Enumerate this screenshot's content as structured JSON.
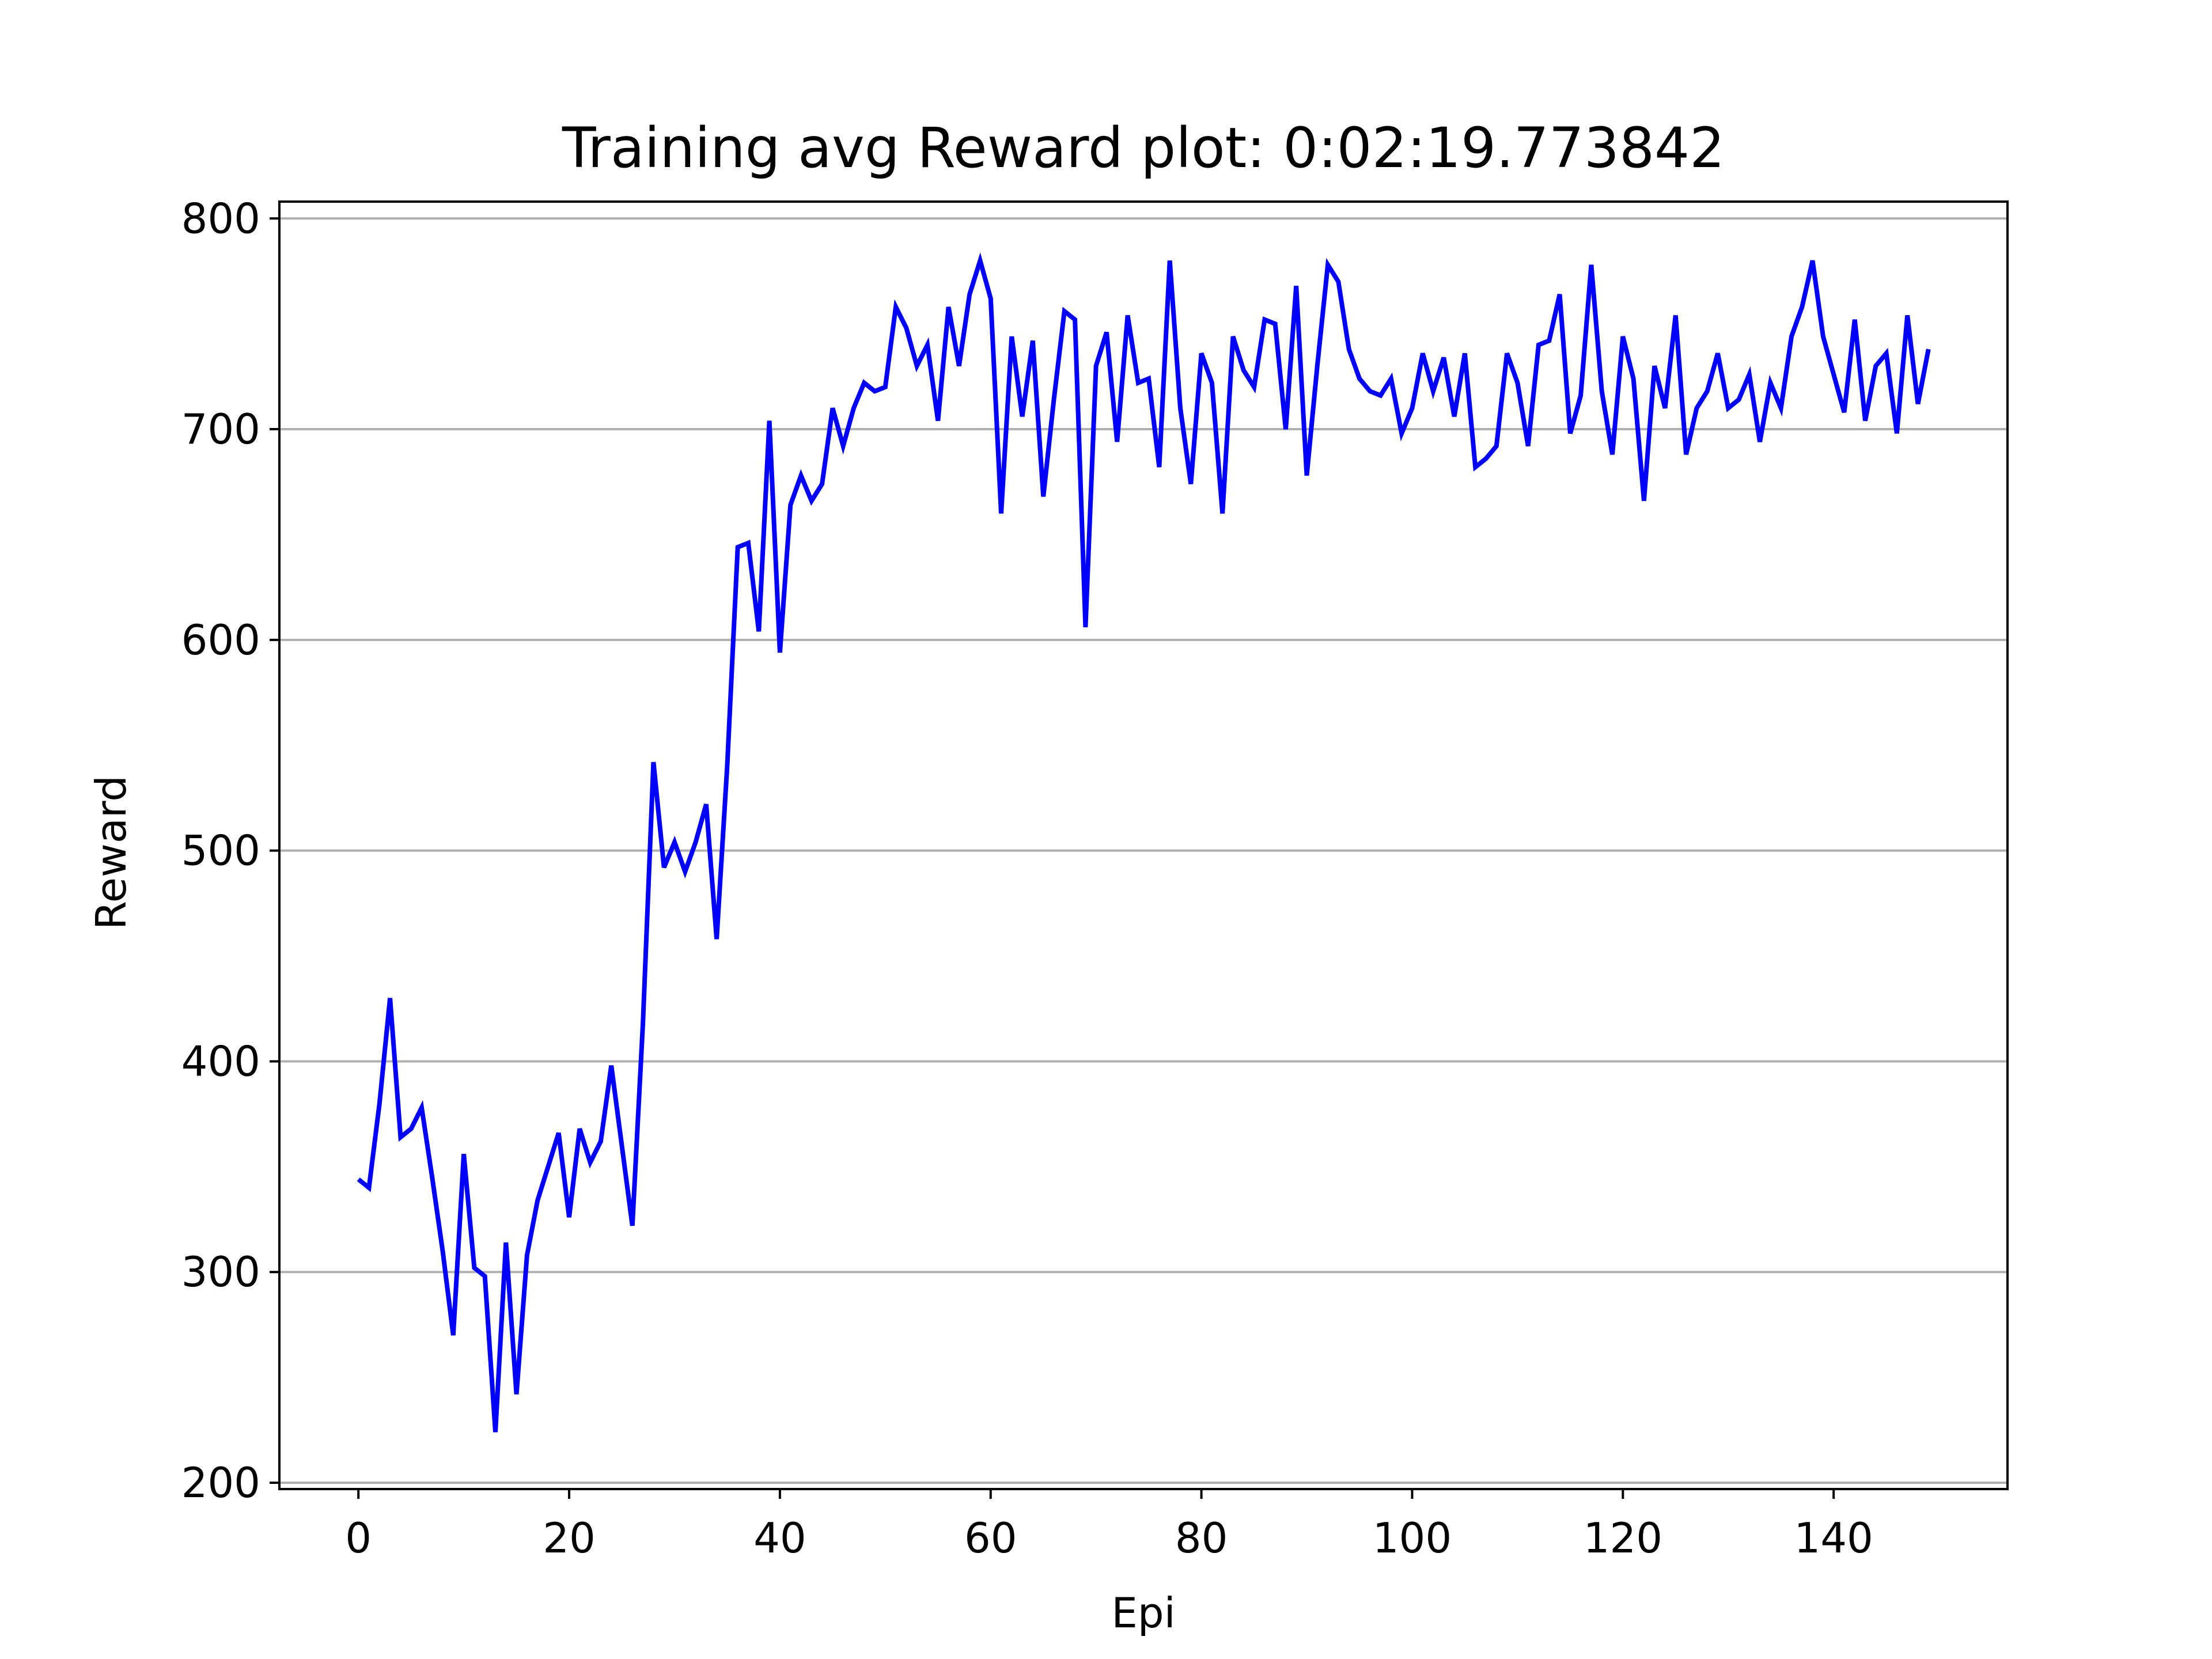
{
  "chart_data": {
    "type": "line",
    "title": "Training avg Reward plot: 0:02:19.773842",
    "xlabel": "Epi",
    "ylabel": "Reward",
    "xlim": [
      -7.5,
      156.5
    ],
    "ylim": [
      197,
      808
    ],
    "xticks": [
      0,
      20,
      40,
      60,
      80,
      100,
      120,
      140
    ],
    "yticks": [
      200,
      300,
      400,
      500,
      600,
      700,
      800
    ],
    "grid": "horizontal",
    "legend": "none",
    "series": [
      {
        "color": "#0000ff",
        "x": [
          0,
          1,
          2,
          3,
          4,
          5,
          6,
          7,
          8,
          9,
          10,
          11,
          12,
          13,
          14,
          15,
          16,
          17,
          18,
          19,
          20,
          21,
          22,
          23,
          24,
          25,
          26,
          27,
          28,
          29,
          30,
          31,
          32,
          33,
          34,
          35,
          36,
          37,
          38,
          39,
          40,
          41,
          42,
          43,
          44,
          45,
          46,
          47,
          48,
          49,
          50,
          51,
          52,
          53,
          54,
          55,
          56,
          57,
          58,
          59,
          60,
          61,
          62,
          63,
          64,
          65,
          66,
          67,
          68,
          69,
          70,
          71,
          72,
          73,
          74,
          75,
          76,
          77,
          78,
          79,
          80,
          81,
          82,
          83,
          84,
          85,
          86,
          87,
          88,
          89,
          90,
          91,
          92,
          93,
          94,
          95,
          96,
          97,
          98,
          99,
          100,
          101,
          102,
          103,
          104,
          105,
          106,
          107,
          108,
          109,
          110,
          111,
          112,
          113,
          114,
          115,
          116,
          117,
          118,
          119,
          120,
          121,
          122,
          123,
          124,
          125,
          126,
          127,
          128,
          129,
          130,
          131,
          132,
          133,
          134,
          135,
          136,
          137,
          138,
          139,
          140,
          141,
          142,
          143,
          144,
          145,
          146,
          147,
          148,
          149
        ],
        "y": [
          344,
          340,
          380,
          430,
          364,
          368,
          378,
          345,
          310,
          270,
          356,
          302,
          298,
          224,
          314,
          242,
          308,
          334,
          350,
          366,
          326,
          368,
          352,
          362,
          398,
          360,
          322,
          418,
          542,
          492,
          504,
          490,
          504,
          522,
          458,
          540,
          644,
          646,
          604,
          704,
          594,
          664,
          678,
          666,
          674,
          710,
          692,
          710,
          722,
          718,
          720,
          758,
          748,
          730,
          740,
          704,
          758,
          730,
          764,
          780,
          762,
          660,
          744,
          706,
          742,
          668,
          714,
          756,
          752,
          606,
          730,
          746,
          694,
          754,
          722,
          724,
          682,
          780,
          710,
          674,
          736,
          722,
          660,
          744,
          728,
          720,
          752,
          750,
          700,
          768,
          678,
          730,
          778,
          770,
          738,
          724,
          718,
          716,
          724,
          698,
          710,
          736,
          718,
          734,
          706,
          736,
          682,
          686,
          692,
          736,
          722,
          692,
          740,
          742,
          764,
          698,
          716,
          778,
          718,
          688,
          744,
          724,
          666,
          730,
          710,
          754,
          688,
          710,
          718,
          736,
          710,
          714,
          726,
          694,
          722,
          710,
          744,
          758,
          780,
          744,
          726,
          708,
          752,
          704,
          730,
          736,
          698,
          754,
          712,
          738
        ]
      }
    ]
  }
}
